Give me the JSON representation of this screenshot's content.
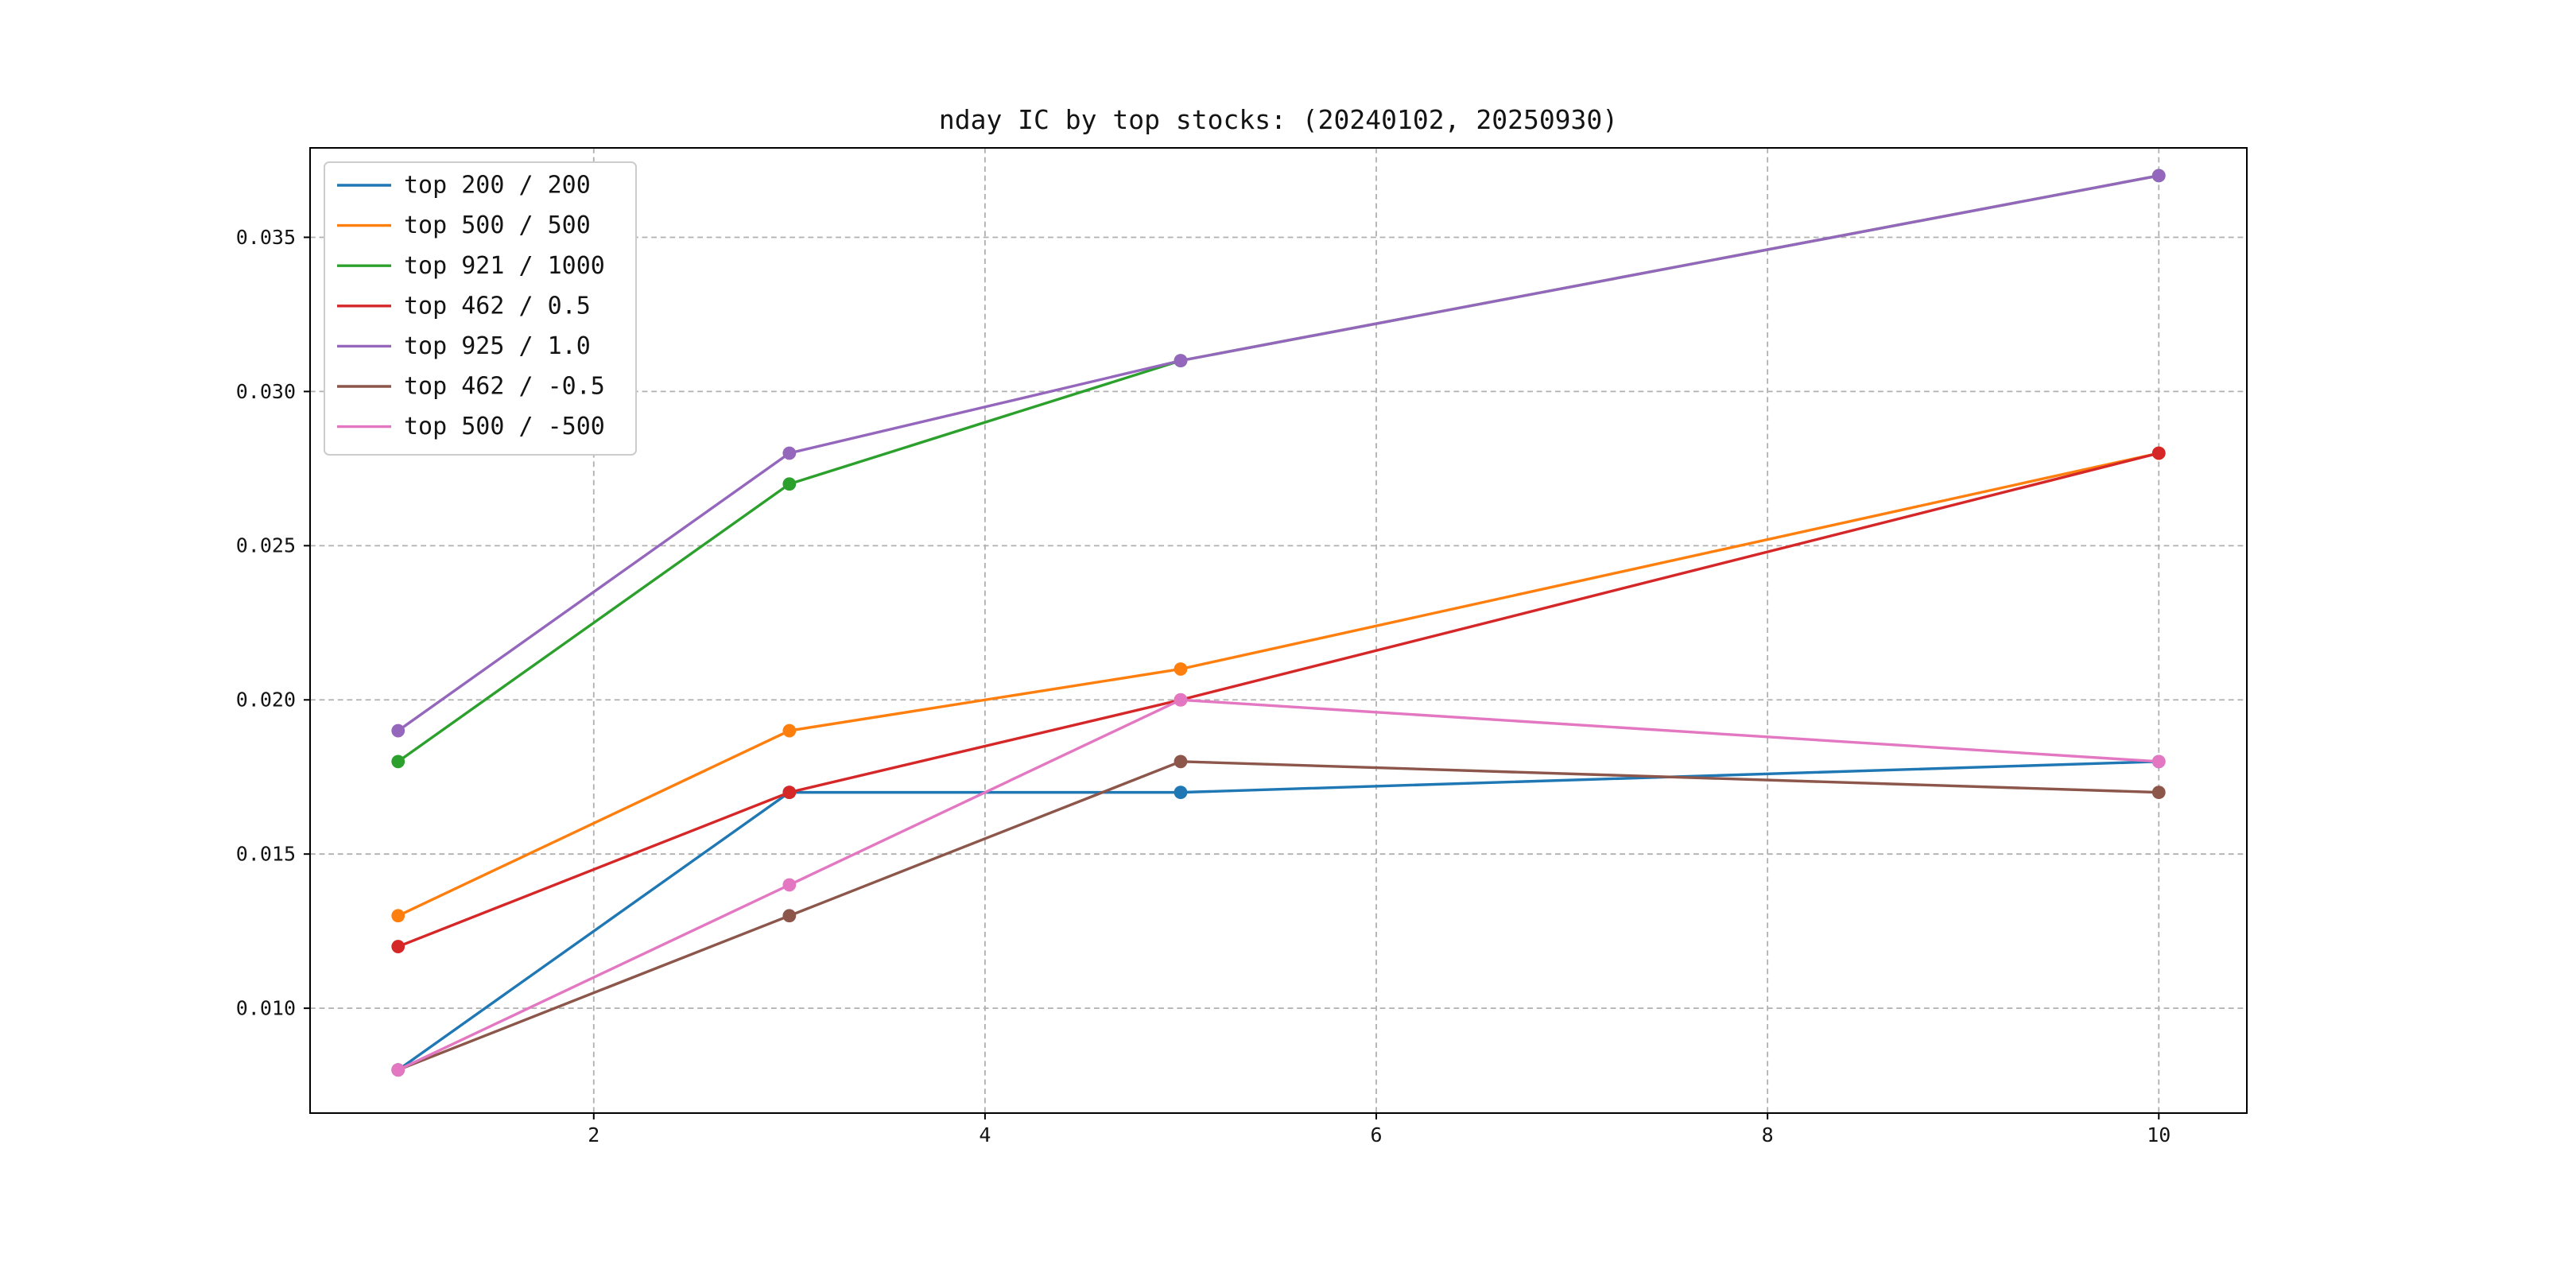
{
  "chart_data": {
    "type": "line",
    "title": "nday IC by top stocks: (20240102, 20250930)",
    "xlabel": "",
    "ylabel": "",
    "x": [
      1,
      3,
      5,
      10
    ],
    "series": [
      {
        "name": "top 200 / 200",
        "color": "#1f77b4",
        "values": [
          0.008,
          0.017,
          0.017,
          0.018
        ]
      },
      {
        "name": "top 500 / 500",
        "color": "#ff7f0e",
        "values": [
          0.013,
          0.019,
          0.021,
          0.028
        ]
      },
      {
        "name": "top 921 / 1000",
        "color": "#2ca02c",
        "values": [
          0.018,
          0.027,
          0.031,
          0.037
        ]
      },
      {
        "name": "top 462 / 0.5",
        "color": "#d62728",
        "values": [
          0.012,
          0.017,
          0.02,
          0.028
        ]
      },
      {
        "name": "top 925 / 1.0",
        "color": "#9467bd",
        "values": [
          0.019,
          0.028,
          0.031,
          0.037
        ]
      },
      {
        "name": "top 462 / -0.5",
        "color": "#8c564b",
        "values": [
          0.008,
          0.013,
          0.018,
          0.017
        ]
      },
      {
        "name": "top 500 / -500",
        "color": "#e377c2",
        "values": [
          0.008,
          0.014,
          0.02,
          0.018
        ]
      }
    ],
    "xticks": [
      2,
      4,
      6,
      8,
      10
    ],
    "yticks": [
      0.01,
      0.015,
      0.02,
      0.025,
      0.03,
      0.035
    ],
    "xlim": [
      0.55,
      10.45
    ],
    "ylim": [
      0.0066,
      0.0379
    ],
    "grid": true,
    "grid_style": "dashed",
    "marker": "o",
    "legend_position": "upper left",
    "background_color": "#ffffff"
  }
}
